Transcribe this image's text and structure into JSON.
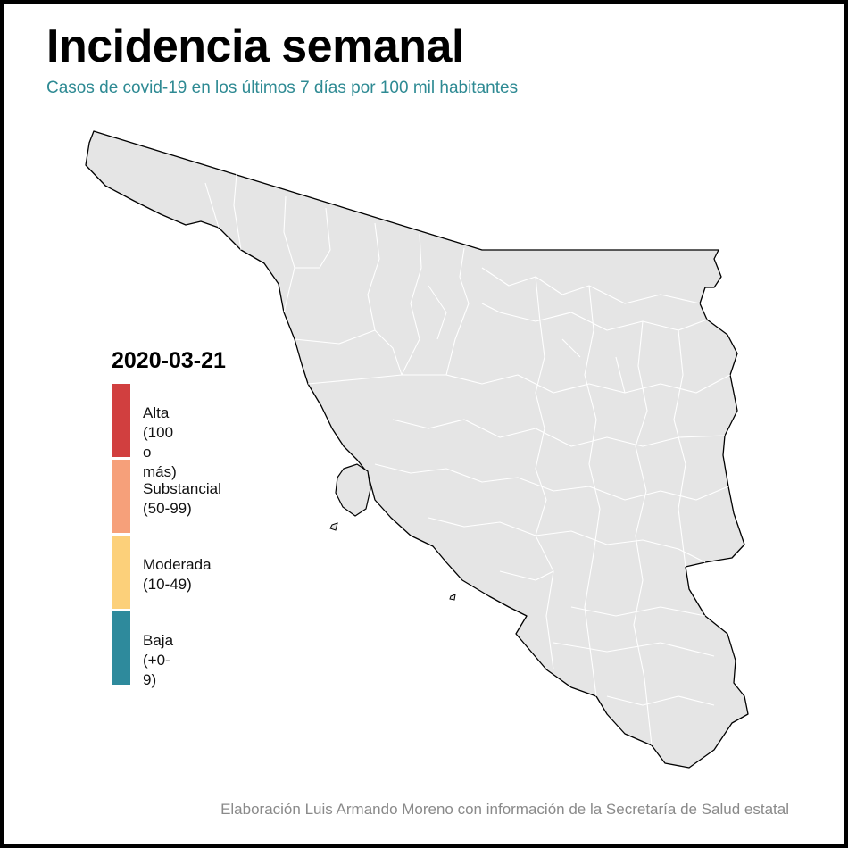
{
  "title": "Incidencia semanal",
  "subtitle": "Casos de covid-19 en los últimos 7 días por 100 mil habitantes",
  "date": "2020-03-21",
  "legend": [
    {
      "label": "Alta",
      "range": "(100 o más)",
      "color": "#d13f3f"
    },
    {
      "label": "Substancial",
      "range": "(50-99)",
      "color": "#f6a07a"
    },
    {
      "label": "Moderada",
      "range": "(10-49)",
      "color": "#fcd07a"
    },
    {
      "label": "Baja",
      "range": "(+0-9)",
      "color": "#2e8a9c"
    }
  ],
  "map": {
    "region": "Sonora",
    "fill_color": "#e5e5e5",
    "outline_color": "#000000",
    "border_color": "#ffffff"
  },
  "caption": "Elaboración Luis Armando Moreno con información de la Secretaría de Salud estatal"
}
